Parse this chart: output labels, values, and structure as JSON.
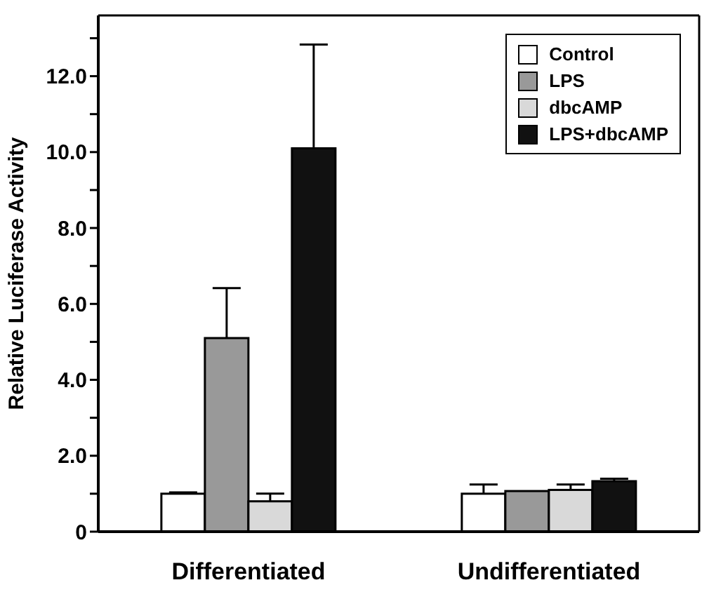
{
  "chart_data": {
    "type": "bar",
    "ylabel": "Relative Luciferase Activity",
    "categories": [
      "Differentiated",
      "Undifferentiated"
    ],
    "series": [
      {
        "name": "Control",
        "color": "#ffffff",
        "values": [
          1.0,
          1.0
        ],
        "errors": [
          [
            1.0,
            1.03
          ],
          [
            1.0,
            1.24
          ]
        ]
      },
      {
        "name": "LPS",
        "color": "#999999",
        "values": [
          5.1,
          1.07
        ],
        "errors": [
          [
            5.1,
            6.4
          ],
          null
        ]
      },
      {
        "name": "dbcAMP",
        "color": "#d9d9d9",
        "values": [
          0.8,
          1.1
        ],
        "errors": [
          [
            0.8,
            1.0
          ],
          [
            1.1,
            1.24
          ]
        ]
      },
      {
        "name": "LPS+dbcAMP",
        "color": "#111111",
        "values": [
          10.1,
          1.33
        ],
        "errors": [
          [
            10.1,
            12.8
          ],
          [
            1.33,
            1.39
          ]
        ]
      }
    ],
    "ylim": [
      0,
      13.6
    ],
    "yticks": [
      {
        "value": 0,
        "label": "0"
      },
      {
        "value": 1,
        "label": null
      },
      {
        "value": 2,
        "label": "2.0"
      },
      {
        "value": 3,
        "label": null
      },
      {
        "value": 4,
        "label": "4.0"
      },
      {
        "value": 5,
        "label": null
      },
      {
        "value": 6,
        "label": "6.0"
      },
      {
        "value": 7,
        "label": null
      },
      {
        "value": 8,
        "label": "8.0"
      },
      {
        "value": 9,
        "label": null
      },
      {
        "value": 10,
        "label": "10.0"
      },
      {
        "value": 11,
        "label": null
      },
      {
        "value": 12,
        "label": "12.0"
      },
      {
        "value": 13,
        "label": null
      }
    ],
    "grid": false,
    "legend": "top right"
  }
}
